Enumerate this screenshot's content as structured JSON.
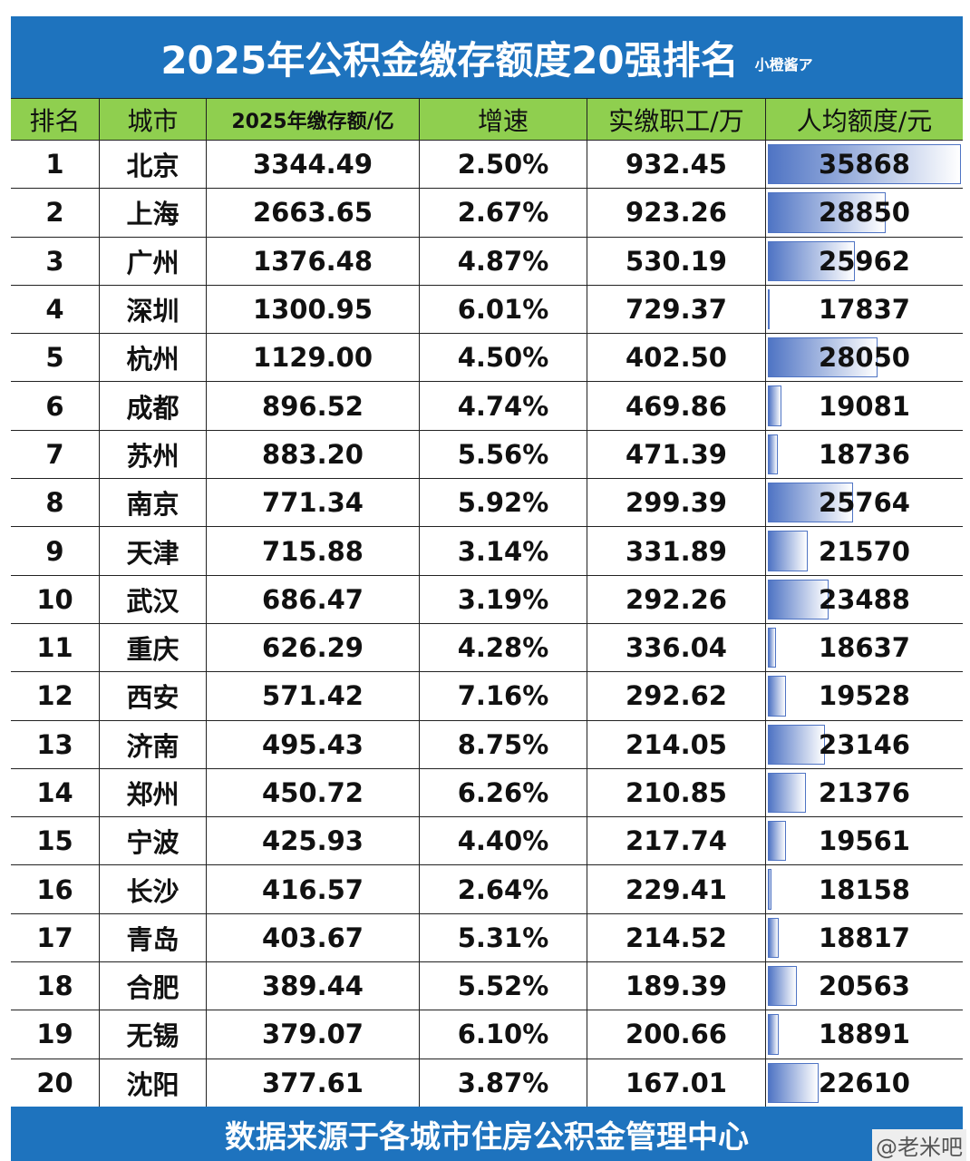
{
  "header": {
    "title": "2025年公积金缴存额度20强排名",
    "watermark": "小橙酱ア"
  },
  "table": {
    "columns": [
      "排名",
      "城市",
      "2025年缴存额/亿",
      "增速",
      "实缴职工/万",
      "人均额度/元"
    ],
    "rows": [
      [
        "1",
        "北京",
        "3344.49",
        "2.50%",
        "932.45",
        35868
      ],
      [
        "2",
        "上海",
        "2663.65",
        "2.67%",
        "923.26",
        28850
      ],
      [
        "3",
        "广州",
        "1376.48",
        "4.87%",
        "530.19",
        25962
      ],
      [
        "4",
        "深圳",
        "1300.95",
        "6.01%",
        "729.37",
        17837
      ],
      [
        "5",
        "杭州",
        "1129.00",
        "4.50%",
        "402.50",
        28050
      ],
      [
        "6",
        "成都",
        "896.52",
        "4.74%",
        "469.86",
        19081
      ],
      [
        "7",
        "苏州",
        "883.20",
        "5.56%",
        "471.39",
        18736
      ],
      [
        "8",
        "南京",
        "771.34",
        "5.92%",
        "299.39",
        25764
      ],
      [
        "9",
        "天津",
        "715.88",
        "3.14%",
        "331.89",
        21570
      ],
      [
        "10",
        "武汉",
        "686.47",
        "3.19%",
        "292.26",
        23488
      ],
      [
        "11",
        "重庆",
        "626.29",
        "4.28%",
        "336.04",
        18637
      ],
      [
        "12",
        "西安",
        "571.42",
        "7.16%",
        "292.62",
        19528
      ],
      [
        "13",
        "济南",
        "495.43",
        "8.75%",
        "214.05",
        23146
      ],
      [
        "14",
        "郑州",
        "450.72",
        "6.26%",
        "210.85",
        21376
      ],
      [
        "15",
        "宁波",
        "425.93",
        "4.40%",
        "217.74",
        19561
      ],
      [
        "16",
        "长沙",
        "416.57",
        "2.64%",
        "229.41",
        18158
      ],
      [
        "17",
        "青岛",
        "403.67",
        "5.31%",
        "214.52",
        18817
      ],
      [
        "18",
        "合肥",
        "389.44",
        "5.52%",
        "189.39",
        20563
      ],
      [
        "19",
        "无锡",
        "379.07",
        "6.10%",
        "200.66",
        18891
      ],
      [
        "20",
        "沈阳",
        "377.61",
        "3.87%",
        "167.01",
        22610
      ]
    ]
  },
  "footer": {
    "source": "数据来源于各城市住房公积金管理中心",
    "watermark": "@老米吧"
  }
}
